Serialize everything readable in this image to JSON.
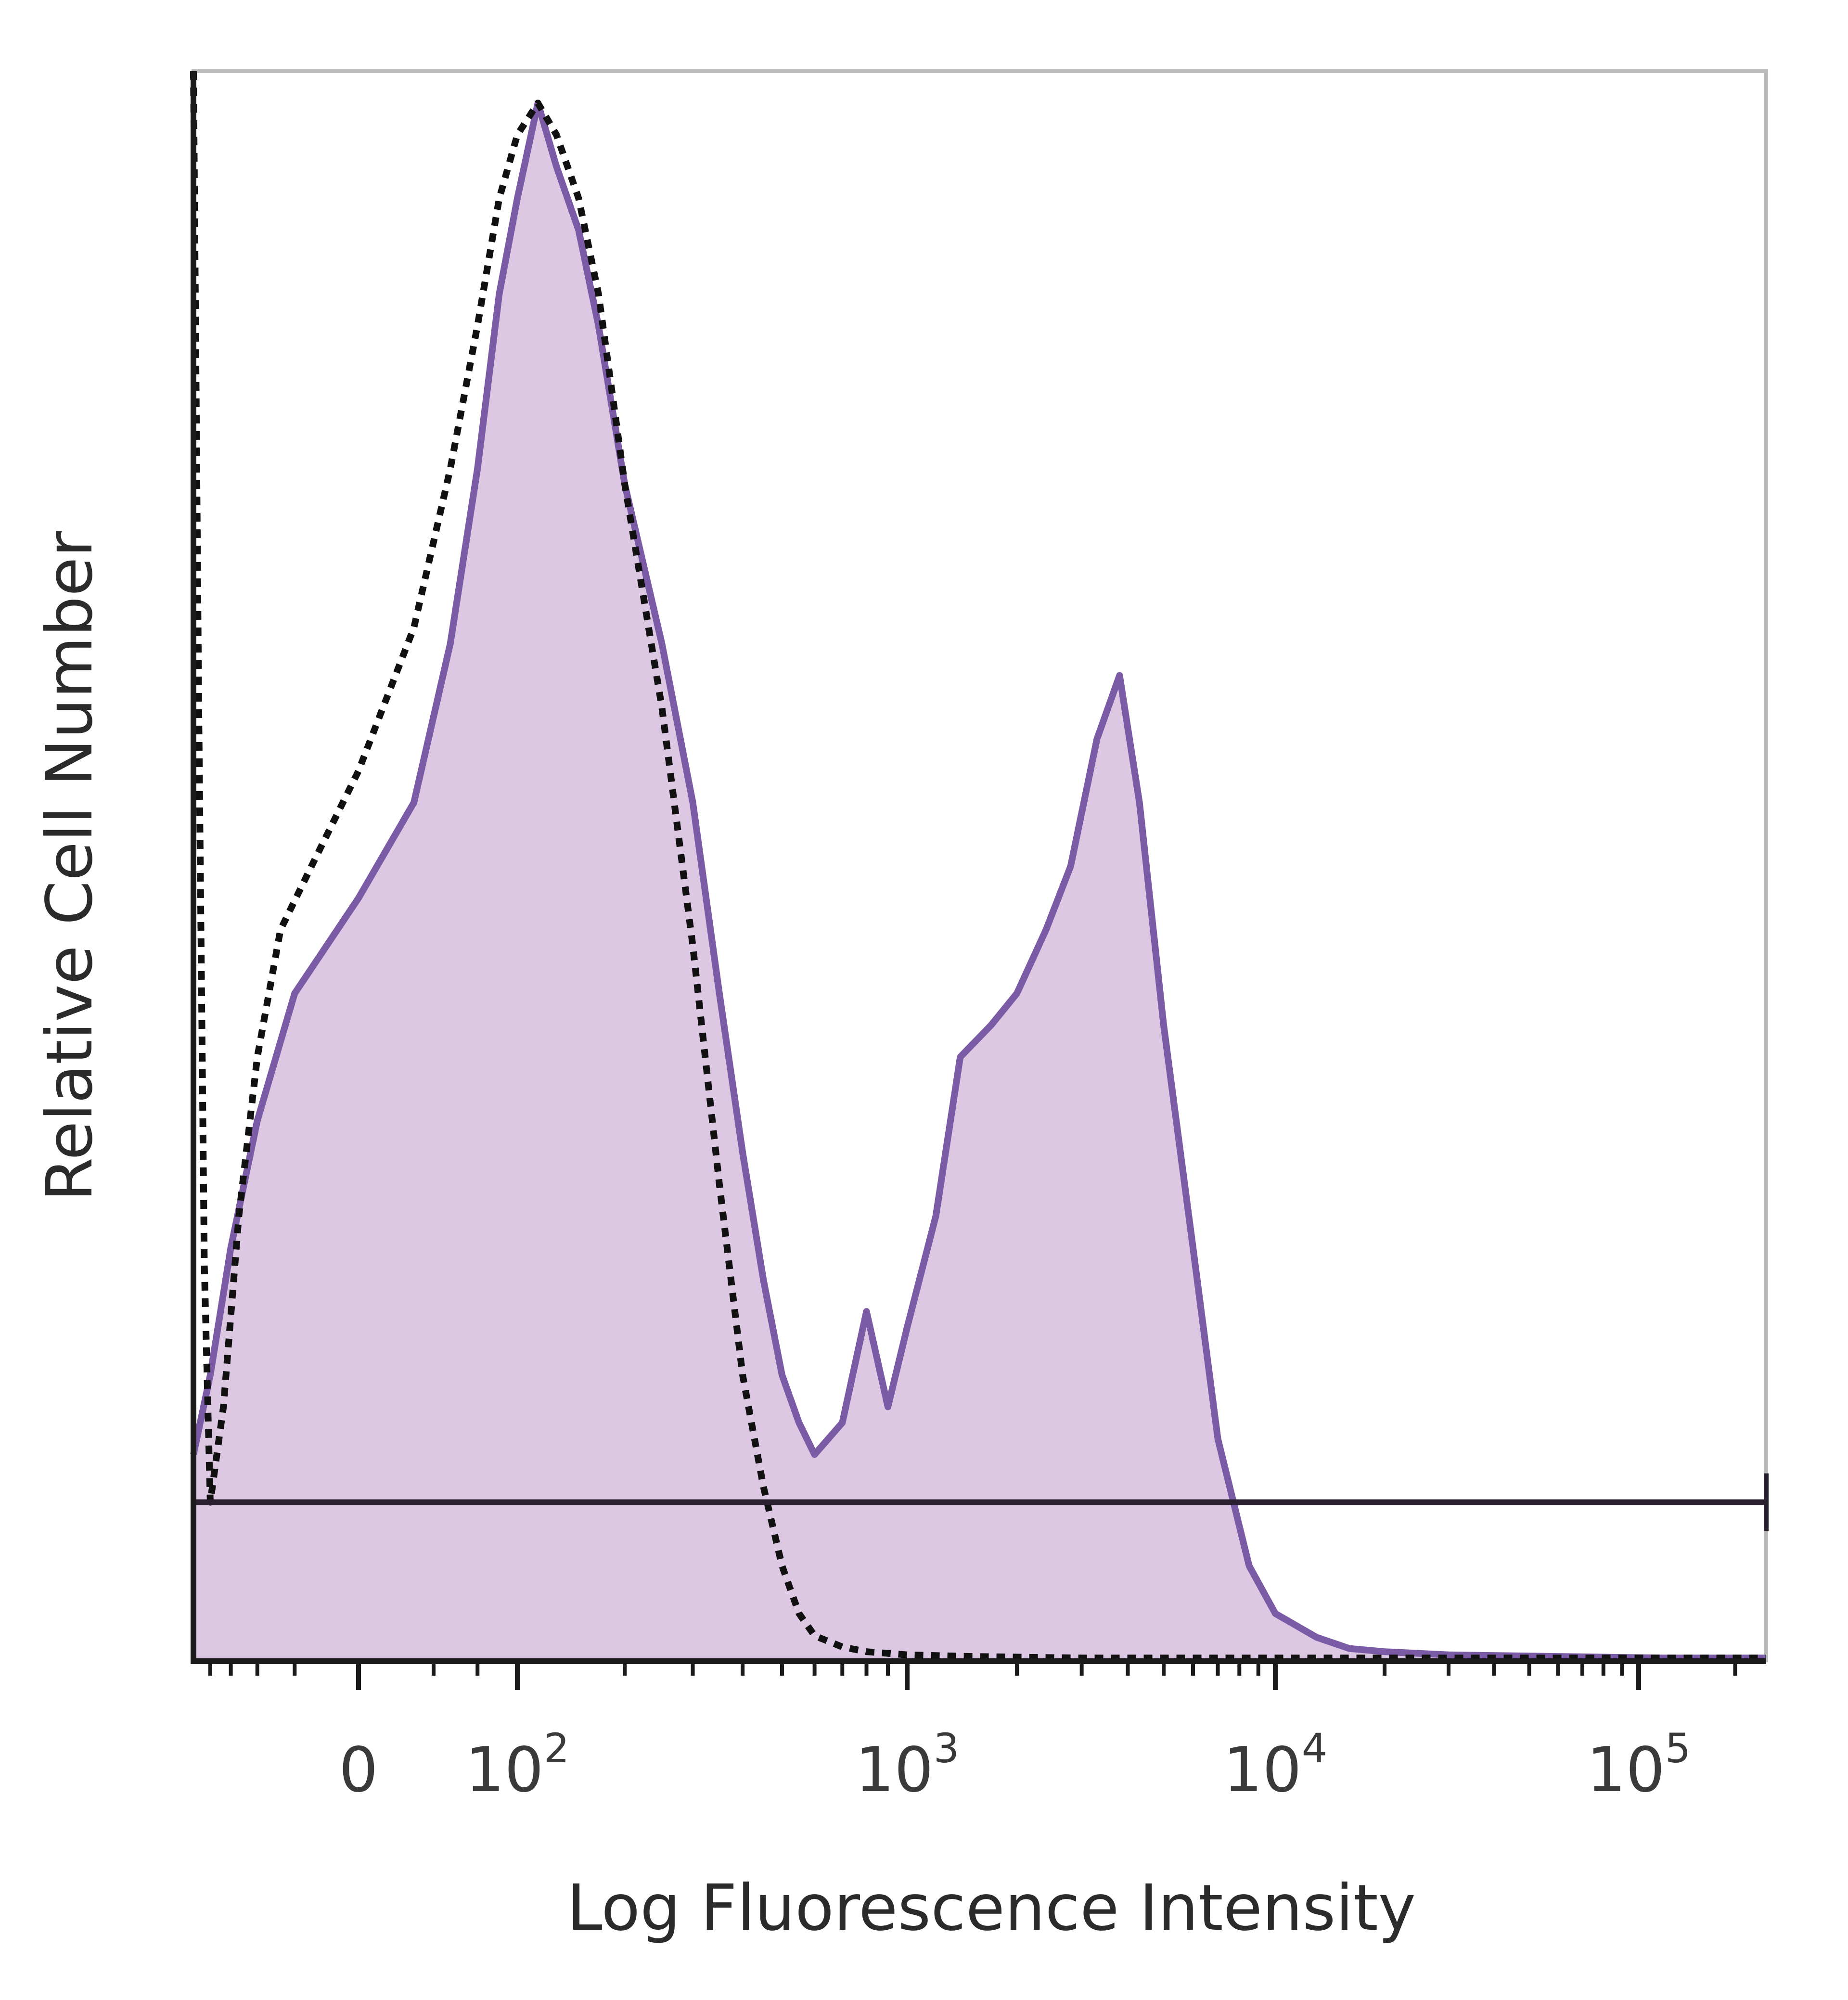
{
  "chart_data": {
    "type": "area",
    "title": "",
    "xlabel": "Log Fluorescence Intensity",
    "ylabel": "Relative Cell Number",
    "xscale": "biexponential (log above 10^2, linear around 0)",
    "grid": false,
    "legend": "none",
    "x_ticks": [
      {
        "value": 0,
        "label": "0",
        "exponent": ""
      },
      {
        "value": 100,
        "label": "10",
        "exponent": "2"
      },
      {
        "value": 1000,
        "label": "10",
        "exponent": "3"
      },
      {
        "value": 10000,
        "label": "10",
        "exponent": "4"
      },
      {
        "value": 100000,
        "label": "10",
        "exponent": "5"
      }
    ],
    "xlim": [
      -150,
      250000
    ],
    "ylim": [
      0,
      100
    ],
    "colors": {
      "stained": "#7b5aa6",
      "stained_fill": "#dcc8e2",
      "isotype": "#111111",
      "gate": "#2a1f2e",
      "frame": "#bbbbbb"
    },
    "gate": {
      "y": 10,
      "x_start": -150,
      "x_end": 250000
    },
    "series": [
      {
        "style": "filled-solid",
        "x": [
          -150,
          -120,
          -90,
          -60,
          -30,
          0,
          20,
          40,
          60,
          80,
          100,
          115,
          130,
          150,
          170,
          200,
          250,
          300,
          350,
          400,
          450,
          500,
          550,
          600,
          700,
          800,
          900,
          1000,
          1200,
          1400,
          1700,
          2000,
          2400,
          2800,
          3300,
          3800,
          4300,
          5000,
          6000,
          7000,
          8500,
          10000,
          13000,
          16000,
          20000,
          30000,
          60000,
          120000,
          250000
        ],
        "y": [
          13,
          18,
          26,
          34,
          42,
          48,
          54,
          64,
          75,
          86,
          92,
          98,
          94,
          90,
          84,
          74,
          64,
          54,
          42,
          32,
          24,
          18,
          15,
          13,
          15,
          22,
          16,
          21,
          28,
          38,
          40,
          42,
          46,
          50,
          58,
          62,
          54,
          40,
          26,
          14,
          6,
          3,
          1.5,
          0.8,
          0.6,
          0.4,
          0.3,
          0.2,
          0.2
        ]
      },
      {
        "style": "dotted",
        "x": [
          -150,
          -140,
          -130,
          -120,
          -100,
          -80,
          -60,
          -40,
          -20,
          0,
          20,
          40,
          60,
          80,
          100,
          115,
          130,
          150,
          170,
          200,
          250,
          300,
          350,
          400,
          450,
          500,
          550,
          600,
          700,
          800,
          1000,
          1500,
          3000,
          10000,
          100000,
          250000
        ],
        "y": [
          100,
          60,
          25,
          10,
          16,
          28,
          38,
          46,
          50,
          56,
          65,
          75,
          84,
          92,
          96,
          98,
          96,
          92,
          86,
          74,
          60,
          45,
          30,
          18,
          11,
          6,
          3,
          1.6,
          0.9,
          0.6,
          0.4,
          0.3,
          0.2,
          0.2,
          0.2,
          0.2
        ]
      }
    ]
  }
}
